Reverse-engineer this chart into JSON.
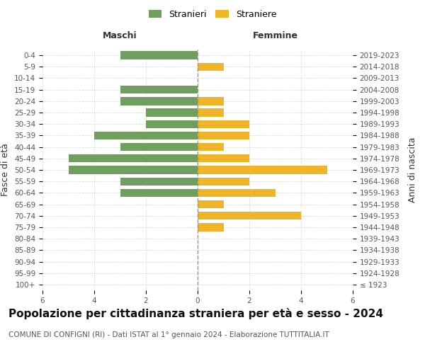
{
  "age_groups": [
    "100+",
    "95-99",
    "90-94",
    "85-89",
    "80-84",
    "75-79",
    "70-74",
    "65-69",
    "60-64",
    "55-59",
    "50-54",
    "45-49",
    "40-44",
    "35-39",
    "30-34",
    "25-29",
    "20-24",
    "15-19",
    "10-14",
    "5-9",
    "0-4"
  ],
  "birth_years": [
    "≤ 1923",
    "1924-1928",
    "1929-1933",
    "1934-1938",
    "1939-1943",
    "1944-1948",
    "1949-1953",
    "1954-1958",
    "1959-1963",
    "1964-1968",
    "1969-1973",
    "1974-1978",
    "1979-1983",
    "1984-1988",
    "1989-1993",
    "1994-1998",
    "1999-2003",
    "2004-2008",
    "2009-2013",
    "2014-2018",
    "2019-2023"
  ],
  "males": [
    0,
    0,
    0,
    0,
    0,
    0,
    0,
    0,
    3,
    3,
    5,
    5,
    3,
    4,
    2,
    2,
    3,
    3,
    0,
    0,
    3
  ],
  "females": [
    0,
    0,
    0,
    0,
    0,
    1,
    4,
    1,
    3,
    2,
    5,
    2,
    1,
    2,
    2,
    1,
    1,
    0,
    0,
    1,
    0
  ],
  "male_color": "#6f9e5e",
  "female_color": "#f0b429",
  "bar_height": 0.7,
  "xlim": 6,
  "title": "Popolazione per cittadinanza straniera per età e sesso - 2024",
  "subtitle": "COMUNE DI CONFIGNI (RI) - Dati ISTAT al 1° gennaio 2024 - Elaborazione TUTTITALIA.IT",
  "left_label": "Maschi",
  "right_label": "Femmine",
  "y_left_label": "Fasce di età",
  "y_right_label": "Anni di nascita",
  "legend_male": "Stranieri",
  "legend_female": "Straniere",
  "background_color": "#ffffff",
  "grid_color": "#cccccc",
  "dashed_line_color": "#999966",
  "tick_color": "#555555",
  "title_fontsize": 11,
  "subtitle_fontsize": 7.5,
  "label_fontsize": 9,
  "tick_fontsize": 7.5,
  "maschi_femmine_fontsize": 9
}
